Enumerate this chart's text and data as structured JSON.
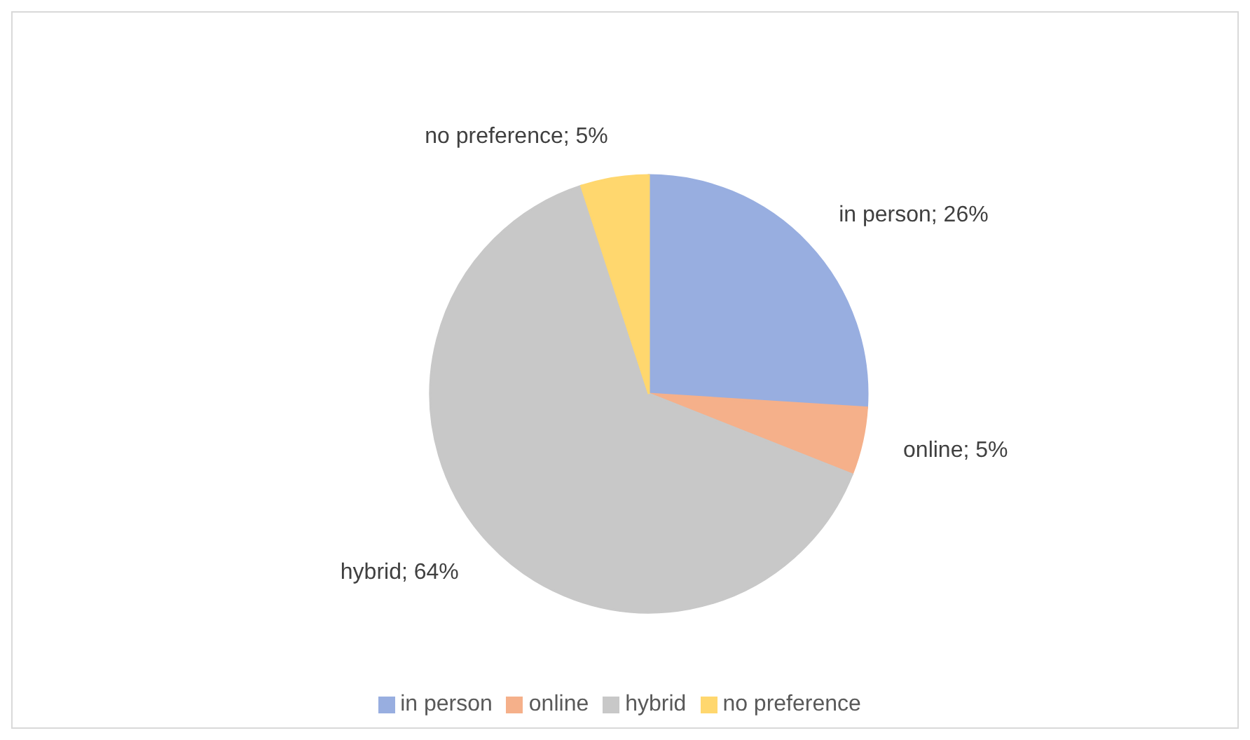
{
  "chart_data": {
    "type": "pie",
    "categories": [
      "in person",
      "online",
      "hybrid",
      "no preference"
    ],
    "values": [
      26,
      5,
      64,
      5
    ],
    "value_labels": [
      "in person; 26%",
      "online; 5%",
      "hybrid; 64%",
      "no preference; 5%"
    ],
    "colors": [
      "#98aee0",
      "#f5b08a",
      "#c8c8c8",
      "#ffd76e"
    ],
    "legend": "bottom"
  }
}
